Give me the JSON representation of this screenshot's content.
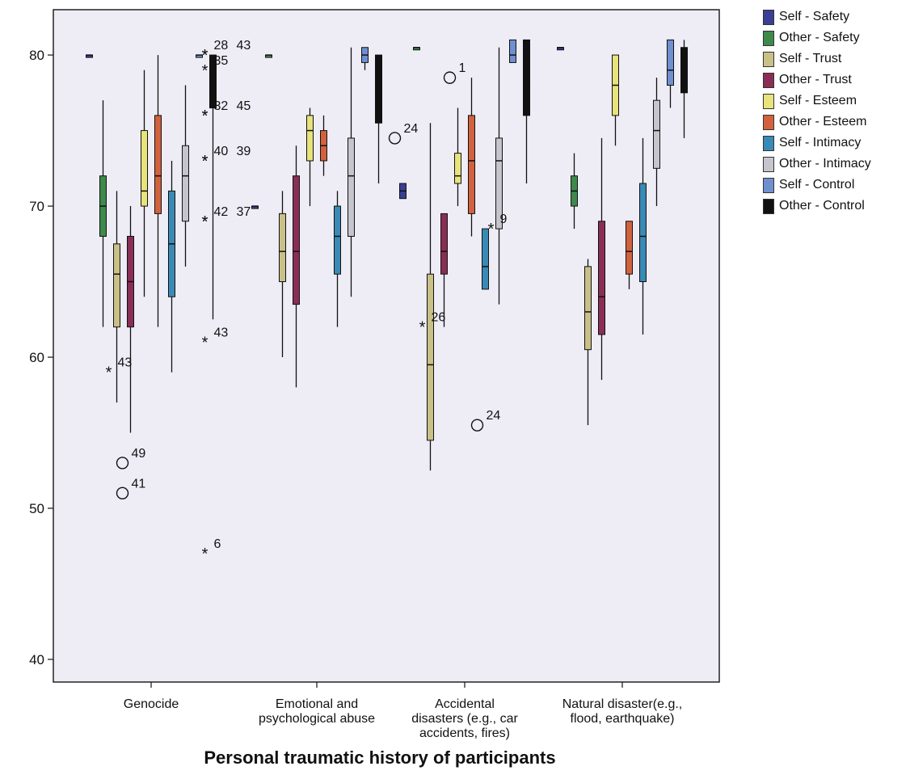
{
  "chart_data": {
    "type": "boxplot",
    "title": "",
    "xlabel": "Personal traumatic history of participants",
    "ylabel": "",
    "ylim": [
      38.5,
      83
    ],
    "yticks": [
      40,
      50,
      60,
      70,
      80
    ],
    "ytick_labels": [
      "40",
      "50",
      "60",
      "70",
      "80"
    ],
    "categories": [
      {
        "lines": [
          "Genocide"
        ]
      },
      {
        "lines": [
          "Emotional and",
          "psychological abuse"
        ]
      },
      {
        "lines": [
          "Accidental",
          "disasters (e.g., car",
          "accidents, fires)"
        ]
      },
      {
        "lines": [
          "Natural disaster(e.g.,",
          "flood, earthquake)"
        ]
      }
    ],
    "series": [
      {
        "name": "Self - Safety",
        "color": "#3a3f93"
      },
      {
        "name": "Other - Safety",
        "color": "#3d8a4c"
      },
      {
        "name": "Self - Trust",
        "color": "#c9c087"
      },
      {
        "name": "Other - Trust",
        "color": "#8a2e55"
      },
      {
        "name": "Self - Esteem",
        "color": "#e8e37a"
      },
      {
        "name": "Other - Esteem",
        "color": "#d2623e"
      },
      {
        "name": "Self - Intimacy",
        "color": "#3a8ab6"
      },
      {
        "name": "Other - Intimacy",
        "color": "#c6c4cc"
      },
      {
        "name": "Self - Control",
        "color": "#6f8fcf"
      },
      {
        "name": "Other - Control",
        "color": "#111111"
      }
    ],
    "boxes": [
      {
        "cat": 0,
        "series": 0,
        "min": 80,
        "q1": 80,
        "median": 80,
        "q3": 80,
        "max": 80
      },
      {
        "cat": 0,
        "series": 1,
        "min": 62,
        "q1": 68,
        "median": 70,
        "q3": 72,
        "max": 77
      },
      {
        "cat": 0,
        "series": 2,
        "min": 57,
        "q1": 62,
        "median": 65.5,
        "q3": 67.5,
        "max": 71
      },
      {
        "cat": 0,
        "series": 3,
        "min": 55,
        "q1": 62,
        "median": 65,
        "q3": 68,
        "max": 70
      },
      {
        "cat": 0,
        "series": 4,
        "min": 64,
        "q1": 70,
        "median": 71,
        "q3": 75,
        "max": 79
      },
      {
        "cat": 0,
        "series": 5,
        "min": 62,
        "q1": 69.5,
        "median": 72,
        "q3": 76,
        "max": 80
      },
      {
        "cat": 0,
        "series": 6,
        "min": 59,
        "q1": 64,
        "median": 67.5,
        "q3": 71,
        "max": 73
      },
      {
        "cat": 0,
        "series": 7,
        "min": 66,
        "q1": 69,
        "median": 72,
        "q3": 74,
        "max": 78
      },
      {
        "cat": 0,
        "series": 8,
        "min": 80,
        "q1": 80,
        "median": 80,
        "q3": 80,
        "max": 80
      },
      {
        "cat": 0,
        "series": 9,
        "min": 62.5,
        "q1": 76.5,
        "median": 78,
        "q3": 80,
        "max": 80
      },
      {
        "cat": 1,
        "series": 0,
        "min": 70,
        "q1": 70,
        "median": 70,
        "q3": 70,
        "max": 70
      },
      {
        "cat": 1,
        "series": 1,
        "min": 80,
        "q1": 80,
        "median": 80,
        "q3": 80,
        "max": 80
      },
      {
        "cat": 1,
        "series": 2,
        "min": 60,
        "q1": 65,
        "median": 67,
        "q3": 69.5,
        "max": 71
      },
      {
        "cat": 1,
        "series": 3,
        "min": 58,
        "q1": 63.5,
        "median": 67,
        "q3": 72,
        "max": 74
      },
      {
        "cat": 1,
        "series": 4,
        "min": 70,
        "q1": 73,
        "median": 75,
        "q3": 76,
        "max": 76.5
      },
      {
        "cat": 1,
        "series": 5,
        "min": 72,
        "q1": 73,
        "median": 74,
        "q3": 75,
        "max": 76
      },
      {
        "cat": 1,
        "series": 6,
        "min": 62,
        "q1": 65.5,
        "median": 68,
        "q3": 70,
        "max": 71
      },
      {
        "cat": 1,
        "series": 7,
        "min": 64,
        "q1": 68,
        "median": 72,
        "q3": 74.5,
        "max": 80.5
      },
      {
        "cat": 1,
        "series": 8,
        "min": 79,
        "q1": 79.5,
        "median": 80,
        "q3": 80.5,
        "max": 80.5
      },
      {
        "cat": 1,
        "series": 9,
        "min": 71.5,
        "q1": 75.5,
        "median": 78,
        "q3": 80,
        "max": 80
      },
      {
        "cat": 2,
        "series": 0,
        "min": 70.5,
        "q1": 70.5,
        "median": 71,
        "q3": 71.5,
        "max": 71.5
      },
      {
        "cat": 2,
        "series": 1,
        "min": 80.5,
        "q1": 80.5,
        "median": 80.5,
        "q3": 80.5,
        "max": 80.5
      },
      {
        "cat": 2,
        "series": 2,
        "min": 52.5,
        "q1": 54.5,
        "median": 59.5,
        "q3": 65.5,
        "max": 75.5
      },
      {
        "cat": 2,
        "series": 3,
        "min": 62,
        "q1": 65.5,
        "median": 67,
        "q3": 69.5,
        "max": 69.5
      },
      {
        "cat": 2,
        "series": 4,
        "min": 70,
        "q1": 71.5,
        "median": 72,
        "q3": 73.5,
        "max": 76.5
      },
      {
        "cat": 2,
        "series": 5,
        "min": 68,
        "q1": 69.5,
        "median": 73,
        "q3": 76,
        "max": 78.5
      },
      {
        "cat": 2,
        "series": 6,
        "min": 64.5,
        "q1": 64.5,
        "median": 66,
        "q3": 68.5,
        "max": 68.5
      },
      {
        "cat": 2,
        "series": 7,
        "min": 63.5,
        "q1": 68.5,
        "median": 73,
        "q3": 74.5,
        "max": 80.5
      },
      {
        "cat": 2,
        "series": 8,
        "min": 79.5,
        "q1": 79.5,
        "median": 80,
        "q3": 81,
        "max": 81
      },
      {
        "cat": 2,
        "series": 9,
        "min": 71.5,
        "q1": 76,
        "median": 78,
        "q3": 81,
        "max": 81
      },
      {
        "cat": 3,
        "series": 0,
        "min": 80.5,
        "q1": 80.5,
        "median": 80.5,
        "q3": 80.5,
        "max": 80.5
      },
      {
        "cat": 3,
        "series": 1,
        "min": 68.5,
        "q1": 70,
        "median": 71,
        "q3": 72,
        "max": 73.5
      },
      {
        "cat": 3,
        "series": 2,
        "min": 55.5,
        "q1": 60.5,
        "median": 63,
        "q3": 66,
        "max": 66.5
      },
      {
        "cat": 3,
        "series": 3,
        "min": 58.5,
        "q1": 61.5,
        "median": 64,
        "q3": 69,
        "max": 74.5
      },
      {
        "cat": 3,
        "series": 4,
        "min": 74,
        "q1": 76,
        "median": 78,
        "q3": 80,
        "max": 80
      },
      {
        "cat": 3,
        "series": 5,
        "min": 64.5,
        "q1": 65.5,
        "median": 67,
        "q3": 69,
        "max": 69
      },
      {
        "cat": 3,
        "series": 6,
        "min": 61.5,
        "q1": 65,
        "median": 68,
        "q3": 71.5,
        "max": 74.5
      },
      {
        "cat": 3,
        "series": 7,
        "min": 70,
        "q1": 72.5,
        "median": 75,
        "q3": 77,
        "max": 78.5
      },
      {
        "cat": 3,
        "series": 8,
        "min": 76.5,
        "q1": 78,
        "median": 79,
        "q3": 81,
        "max": 81
      },
      {
        "cat": 3,
        "series": 9,
        "min": 74.5,
        "q1": 77.5,
        "median": 79,
        "q3": 80.5,
        "max": 81
      }
    ],
    "outliers": [
      {
        "cat": 0,
        "series": 2,
        "y": 59,
        "marker": "star",
        "label": "43"
      },
      {
        "cat": 0,
        "series": 3,
        "y": 53,
        "marker": "circle",
        "label": "49"
      },
      {
        "cat": 0,
        "series": 3,
        "y": 51,
        "marker": "circle",
        "label": "41"
      },
      {
        "cat": 0,
        "series": 9,
        "y": 80,
        "marker": "star",
        "label": "28"
      },
      {
        "cat": 0,
        "series": 9,
        "y": 80,
        "marker": "star",
        "label": "43"
      },
      {
        "cat": 0,
        "series": 9,
        "y": 79,
        "marker": "star",
        "label": "35"
      },
      {
        "cat": 0,
        "series": 9,
        "y": 76,
        "marker": "star",
        "label": "32"
      },
      {
        "cat": 0,
        "series": 9,
        "y": 76,
        "marker": "star",
        "label": "45"
      },
      {
        "cat": 0,
        "series": 9,
        "y": 73,
        "marker": "star",
        "label": "40"
      },
      {
        "cat": 0,
        "series": 9,
        "y": 73,
        "marker": "star",
        "label": "39"
      },
      {
        "cat": 0,
        "series": 9,
        "y": 69,
        "marker": "star",
        "label": "42"
      },
      {
        "cat": 0,
        "series": 9,
        "y": 69,
        "marker": "star",
        "label": "37"
      },
      {
        "cat": 0,
        "series": 9,
        "y": 61,
        "marker": "star",
        "label": "43"
      },
      {
        "cat": 0,
        "series": 9,
        "y": 47,
        "marker": "star",
        "label": "6"
      },
      {
        "cat": 2,
        "series": 0,
        "y": 74.5,
        "marker": "circle",
        "label": "24"
      },
      {
        "cat": 2,
        "series": 2,
        "y": 62,
        "marker": "star",
        "label": "26"
      },
      {
        "cat": 2,
        "series": 4,
        "y": 78.5,
        "marker": "circle",
        "label": "1"
      },
      {
        "cat": 2,
        "series": 6,
        "y": 55.5,
        "marker": "circle",
        "label": "24"
      },
      {
        "cat": 2,
        "series": 7,
        "y": 68.5,
        "marker": "star",
        "label": "9"
      }
    ]
  }
}
